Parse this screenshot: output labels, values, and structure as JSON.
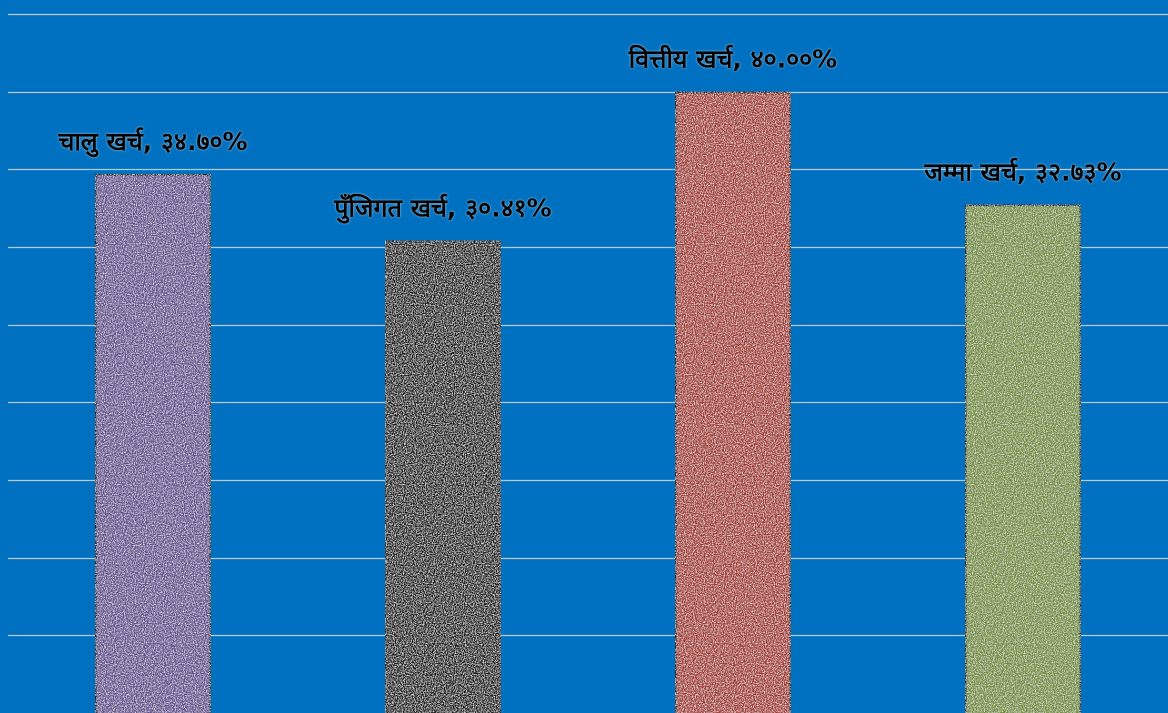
{
  "chart_data": {
    "type": "bar",
    "categories": [
      "चालु खर्च",
      "पुँजिगत खर्च",
      "वित्तीय खर्च",
      "जम्मा खर्च"
    ],
    "values": [
      34.7,
      30.41,
      40.0,
      32.73
    ],
    "data_labels": [
      "चालु खर्च, ३४.७०%",
      "पुँजिगत खर्च, ३०.४१%",
      "वित्तीय खर्च, ४०.००%",
      "जम्मा खर्च, ३२.७३%"
    ],
    "bar_colors": [
      "#5f4a8b",
      "#141414",
      "#a0302b",
      "#6e8a35"
    ],
    "background_color": "#0070c0",
    "gridlines": true,
    "grid_step": 5,
    "ylim": [
      0,
      45
    ],
    "title": "",
    "xlabel": "",
    "ylabel": ""
  }
}
